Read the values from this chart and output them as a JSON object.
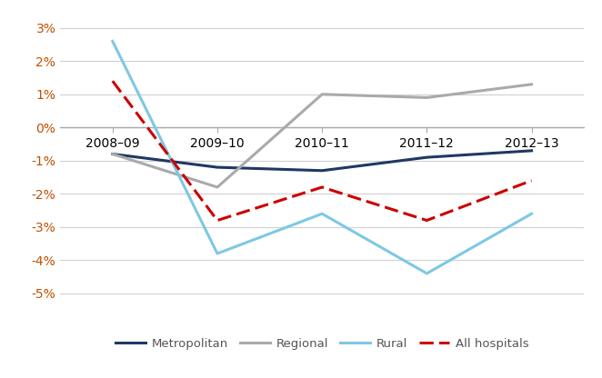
{
  "x_labels": [
    "2008–09",
    "2009–10",
    "2010–11",
    "2011–12",
    "2012–13"
  ],
  "x_positions": [
    0,
    1,
    2,
    3,
    4
  ],
  "series": {
    "Metropolitan": {
      "values": [
        -0.008,
        -0.012,
        -0.013,
        -0.009,
        -0.007
      ],
      "color": "#1f3864",
      "linewidth": 2.2,
      "linestyle": "solid"
    },
    "Regional": {
      "values": [
        -0.008,
        -0.018,
        0.01,
        0.009,
        0.013
      ],
      "color": "#aaaaaa",
      "linewidth": 2.2,
      "linestyle": "solid"
    },
    "Rural": {
      "values": [
        0.026,
        -0.038,
        -0.026,
        -0.044,
        -0.026
      ],
      "color": "#7ec8e3",
      "linewidth": 2.2,
      "linestyle": "solid"
    },
    "All hospitals": {
      "values": [
        0.014,
        -0.028,
        -0.018,
        -0.028,
        -0.016
      ],
      "color": "#cc0000",
      "linewidth": 2.2,
      "linestyle": "dashed"
    }
  },
  "ylim": [
    -0.055,
    0.035
  ],
  "yticks": [
    -0.05,
    -0.04,
    -0.03,
    -0.02,
    -0.01,
    0.0,
    0.01,
    0.02,
    0.03
  ],
  "ytick_labels": [
    "-5%",
    "-4%",
    "-3%",
    "-2%",
    "-1%",
    "0%",
    "1%",
    "2%",
    "3%"
  ],
  "legend_order": [
    "Metropolitan",
    "Regional",
    "Rural",
    "All hospitals"
  ],
  "background_color": "#ffffff",
  "grid_color": "#d0d0d0",
  "zero_line_color": "#aaaaaa",
  "ytick_color": "#c05000",
  "xtick_color": "#c05000"
}
